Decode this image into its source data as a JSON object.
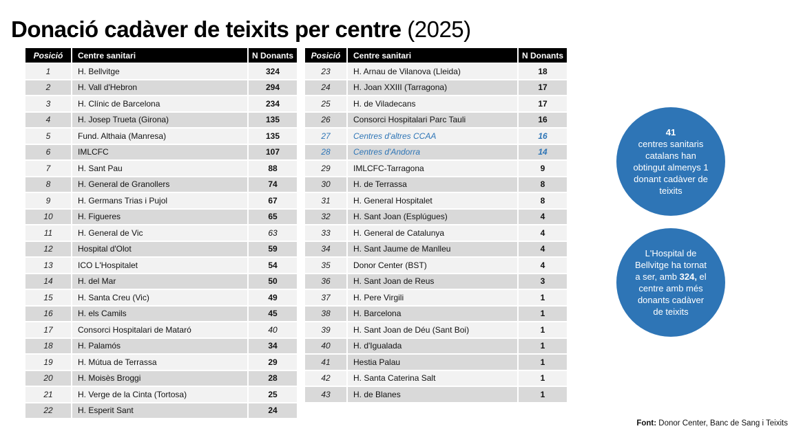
{
  "title": {
    "main": "Donació cadàver de teixits per centre",
    "year": " (2025)"
  },
  "table_headers": {
    "position": "Posició",
    "center": "Centre sanitari",
    "donors": "N Donants"
  },
  "left_table": {
    "rows": [
      {
        "pos": "1",
        "center": "H. Bellvitge",
        "donors": "324",
        "shade": "light"
      },
      {
        "pos": "2",
        "center": "H. Vall d'Hebron",
        "donors": "294",
        "shade": "dark"
      },
      {
        "pos": "3",
        "center": "H. Clínic de Barcelona",
        "donors": "234",
        "shade": "light"
      },
      {
        "pos": "4",
        "center": "H. Josep Trueta (Girona)",
        "donors": "135",
        "shade": "dark"
      },
      {
        "pos": "5",
        "center": "Fund. Althaia (Manresa)",
        "donors": "135",
        "shade": "light"
      },
      {
        "pos": "6",
        "center": "IMLCFC",
        "donors": "107",
        "shade": "dark"
      },
      {
        "pos": "7",
        "center": "H. Sant Pau",
        "donors": "88",
        "shade": "light"
      },
      {
        "pos": "8",
        "center": "H. General de Granollers",
        "donors": "74",
        "shade": "dark"
      },
      {
        "pos": "9",
        "center": "H. Germans Trias i Pujol",
        "donors": "67",
        "shade": "light"
      },
      {
        "pos": "10",
        "center": "H. Figueres",
        "donors": "65",
        "shade": "dark"
      },
      {
        "pos": "11",
        "center": "H. General de Vic",
        "donors": "63",
        "shade": "light",
        "value_style": "italic"
      },
      {
        "pos": "12",
        "center": "Hospital d'Olot",
        "donors": "59",
        "shade": "dark"
      },
      {
        "pos": "13",
        "center": "ICO L'Hospitalet",
        "donors": "54",
        "shade": "light"
      },
      {
        "pos": "14",
        "center": "H. del Mar",
        "donors": "50",
        "shade": "dark"
      },
      {
        "pos": "15",
        "center": "H. Santa Creu (Vic)",
        "donors": "49",
        "shade": "light"
      },
      {
        "pos": "16",
        "center": "H. els Camils",
        "donors": "45",
        "shade": "dark"
      },
      {
        "pos": "17",
        "center": "Consorci Hospitalari de Mataró",
        "donors": "40",
        "shade": "light",
        "value_style": "italic"
      },
      {
        "pos": "18",
        "center": "H. Palamós",
        "donors": "34",
        "shade": "dark"
      },
      {
        "pos": "19",
        "center": "H. Mútua de Terrassa",
        "donors": "29",
        "shade": "light"
      },
      {
        "pos": "20",
        "center": "H. Moisès Broggi",
        "donors": "28",
        "shade": "dark"
      },
      {
        "pos": "21",
        "center": "H. Verge de la Cinta (Tortosa)",
        "donors": "25",
        "shade": "light"
      },
      {
        "pos": "22",
        "center": "H. Esperit Sant",
        "donors": "24",
        "shade": "dark"
      }
    ]
  },
  "right_table": {
    "rows": [
      {
        "pos": "23",
        "center": "H. Arnau de Vilanova (Lleida)",
        "donors": "18",
        "shade": "light"
      },
      {
        "pos": "24",
        "center": "H. Joan XXIII (Tarragona)",
        "donors": "17",
        "shade": "dark"
      },
      {
        "pos": "25",
        "center": "H. de Viladecans",
        "donors": "17",
        "shade": "light"
      },
      {
        "pos": "26",
        "center": "Consorci Hospitalari Parc Tauli",
        "donors": "16",
        "shade": "dark"
      },
      {
        "pos": "27",
        "center": "Centres d'altres CCAA",
        "donors": "16",
        "shade": "light",
        "row_style": "blue-italic"
      },
      {
        "pos": "28",
        "center": "Centres d'Andorra",
        "donors": "14",
        "shade": "dark",
        "row_style": "blue-italic"
      },
      {
        "pos": "29",
        "center": "IMLCFC-Tarragona",
        "donors": "9",
        "shade": "light"
      },
      {
        "pos": "30",
        "center": "H. de Terrassa",
        "donors": "8",
        "shade": "dark"
      },
      {
        "pos": "31",
        "center": "H. General Hospitalet",
        "donors": "8",
        "shade": "light"
      },
      {
        "pos": "32",
        "center": "H. Sant Joan (Esplúgues)",
        "donors": "4",
        "shade": "dark"
      },
      {
        "pos": "33",
        "center": "H. General de Catalunya",
        "donors": "4",
        "shade": "light"
      },
      {
        "pos": "34",
        "center": "H. Sant Jaume de Manlleu",
        "donors": "4",
        "shade": "dark"
      },
      {
        "pos": "35",
        "center": "Donor Center (BST)",
        "donors": "4",
        "shade": "light"
      },
      {
        "pos": "36",
        "center": "H. Sant Joan de Reus",
        "donors": "3",
        "shade": "dark"
      },
      {
        "pos": "37",
        "center": "H. Pere Virgili",
        "donors": "1",
        "shade": "light"
      },
      {
        "pos": "38",
        "center": "H. Barcelona",
        "donors": "1",
        "shade": "dark"
      },
      {
        "pos": "39",
        "center": "H. Sant Joan de Déu (Sant Boi)",
        "donors": "1",
        "shade": "light"
      },
      {
        "pos": "40",
        "center": "H. d'Igualada",
        "donors": "1",
        "shade": "dark"
      },
      {
        "pos": "41",
        "center": "Hestia Palau",
        "donors": "1",
        "shade": "dark"
      },
      {
        "pos": "42",
        "center": "H. Santa Caterina Salt",
        "donors": "1",
        "shade": "light"
      },
      {
        "pos": "43",
        "center": "H. de Blanes",
        "donors": "1",
        "shade": "dark"
      }
    ]
  },
  "callouts": {
    "total_centers": {
      "highlight": "41",
      "text": "centres sanitaris catalans han obtingut almenys 1 donant cadàver de teixits"
    },
    "bellvitge": {
      "pre": "L'Hospital de Bellvitge ha tornat a ser, amb ",
      "highlight": "324,",
      "post": " el centre amb més donants cadàver de teixits"
    }
  },
  "footer": {
    "label": "Font:",
    "text": " Donor Center, Banc de Sang i Teixits"
  },
  "colors": {
    "accent_blue": "#2e75b6",
    "header_bg": "#000000",
    "header_text": "#ffffff",
    "row_light": "#f2f2f2",
    "row_dark": "#d9d9d9"
  },
  "chart_data": {
    "type": "table",
    "title": "Donació cadàver de teixits per centre (2025)",
    "columns": [
      "Posició",
      "Centre sanitari",
      "N Donants"
    ],
    "rows": [
      [
        1,
        "H. Bellvitge",
        324
      ],
      [
        2,
        "H. Vall d'Hebron",
        294
      ],
      [
        3,
        "H. Clínic de Barcelona",
        234
      ],
      [
        4,
        "H. Josep Trueta (Girona)",
        135
      ],
      [
        5,
        "Fund. Althaia (Manresa)",
        135
      ],
      [
        6,
        "IMLCFC",
        107
      ],
      [
        7,
        "H. Sant Pau",
        88
      ],
      [
        8,
        "H. General de Granollers",
        74
      ],
      [
        9,
        "H. Germans Trias i Pujol",
        67
      ],
      [
        10,
        "H. Figueres",
        65
      ],
      [
        11,
        "H. General de Vic",
        63
      ],
      [
        12,
        "Hospital d'Olot",
        59
      ],
      [
        13,
        "ICO L'Hospitalet",
        54
      ],
      [
        14,
        "H. del Mar",
        50
      ],
      [
        15,
        "H. Santa Creu (Vic)",
        49
      ],
      [
        16,
        "H. els Camils",
        45
      ],
      [
        17,
        "Consorci Hospitalari de Mataró",
        40
      ],
      [
        18,
        "H. Palamós",
        34
      ],
      [
        19,
        "H. Mútua de Terrassa",
        29
      ],
      [
        20,
        "H. Moisès Broggi",
        28
      ],
      [
        21,
        "H. Verge de la Cinta (Tortosa)",
        25
      ],
      [
        22,
        "H. Esperit Sant",
        24
      ],
      [
        23,
        "H. Arnau de Vilanova (Lleida)",
        18
      ],
      [
        24,
        "H. Joan XXIII (Tarragona)",
        17
      ],
      [
        25,
        "H. de Viladecans",
        17
      ],
      [
        26,
        "Consorci Hospitalari Parc Tauli",
        16
      ],
      [
        27,
        "Centres d'altres CCAA",
        16
      ],
      [
        28,
        "Centres d'Andorra",
        14
      ],
      [
        29,
        "IMLCFC-Tarragona",
        9
      ],
      [
        30,
        "H. de Terrassa",
        8
      ],
      [
        31,
        "H. General Hospitalet",
        8
      ],
      [
        32,
        "H. Sant Joan (Esplúgues)",
        4
      ],
      [
        33,
        "H. General de Catalunya",
        4
      ],
      [
        34,
        "H. Sant Jaume de Manlleu",
        4
      ],
      [
        35,
        "Donor Center (BST)",
        4
      ],
      [
        36,
        "H. Sant Joan de Reus",
        3
      ],
      [
        37,
        "H. Pere Virgili",
        1
      ],
      [
        38,
        "H. Barcelona",
        1
      ],
      [
        39,
        "H. Sant Joan de Déu (Sant Boi)",
        1
      ],
      [
        40,
        "H. d'Igualada",
        1
      ],
      [
        41,
        "Hestia Palau",
        1
      ],
      [
        42,
        "H. Santa Caterina Salt",
        1
      ],
      [
        43,
        "H. de Blanes",
        1
      ]
    ],
    "annotations": [
      "41 centres sanitaris catalans han obtingut almenys 1 donant cadàver de teixits",
      "L'Hospital de Bellvitge ha tornat a ser, amb 324, el centre amb més donants cadàver de teixits"
    ],
    "source": "Font: Donor Center, Banc de Sang i Teixits"
  }
}
